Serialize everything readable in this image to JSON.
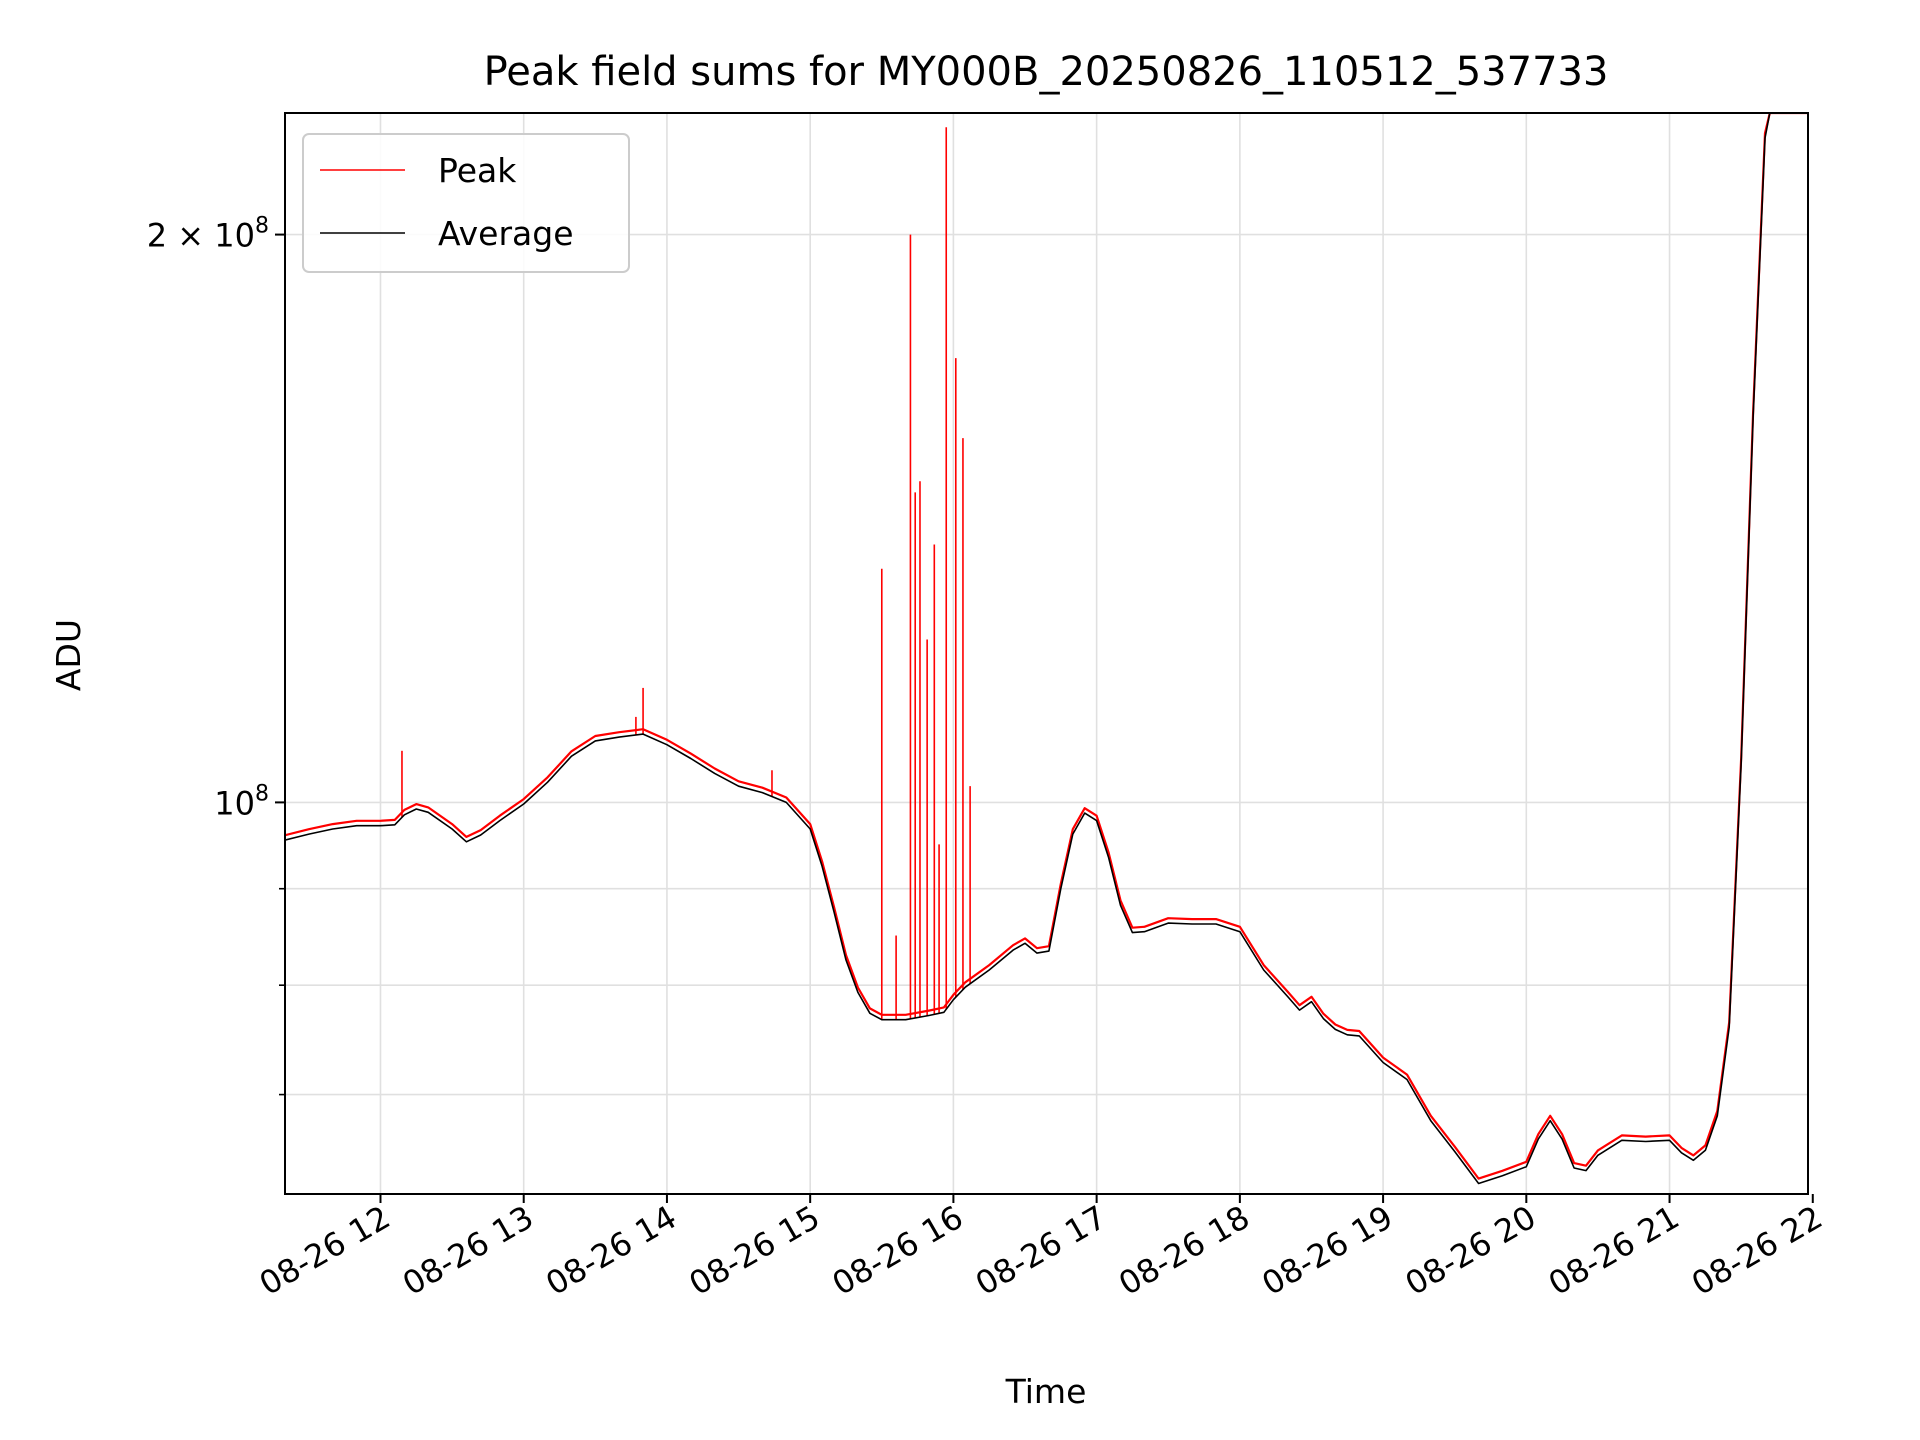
{
  "chart_data": {
    "type": "line",
    "title": "Peak field sums for MY000B_20250826_110512_537733",
    "xlabel": "Time",
    "ylabel": "ADU",
    "yscale": "log",
    "ylim": [
      62000000,
      232000000
    ],
    "xlim": [
      "2025-08-26 11:20",
      "2025-08-26 21:58"
    ],
    "grid": true,
    "legend_position": "top-left",
    "x_ticks": [
      {
        "t": "2025-08-26 12:00",
        "label": "08-26 12"
      },
      {
        "t": "2025-08-26 13:00",
        "label": "08-26 13"
      },
      {
        "t": "2025-08-26 14:00",
        "label": "08-26 14"
      },
      {
        "t": "2025-08-26 15:00",
        "label": "08-26 15"
      },
      {
        "t": "2025-08-26 16:00",
        "label": "08-26 16"
      },
      {
        "t": "2025-08-26 17:00",
        "label": "08-26 17"
      },
      {
        "t": "2025-08-26 18:00",
        "label": "08-26 18"
      },
      {
        "t": "2025-08-26 19:00",
        "label": "08-26 19"
      },
      {
        "t": "2025-08-26 20:00",
        "label": "08-26 20"
      },
      {
        "t": "2025-08-26 21:00",
        "label": "08-26 21"
      },
      {
        "t": "2025-08-26 22:00",
        "label": "08-26 22"
      }
    ],
    "y_ticks_major": [
      {
        "v": 100000000,
        "mantissa": "10",
        "exp": "8"
      },
      {
        "v": 200000000,
        "mantissa": "2 × 10",
        "exp": "8"
      }
    ],
    "y_ticks_minor": [
      70000000,
      80000000,
      90000000
    ],
    "series": [
      {
        "name": "Average",
        "color": "#000000",
        "points": [
          [
            "2025-08-26 11:20",
            95500000
          ],
          [
            "2025-08-26 11:30",
            96200000
          ],
          [
            "2025-08-26 11:40",
            96800000
          ],
          [
            "2025-08-26 11:50",
            97200000
          ],
          [
            "2025-08-26 12:00",
            97200000
          ],
          [
            "2025-08-26 12:06",
            97300000
          ],
          [
            "2025-08-26 12:10",
            98500000
          ],
          [
            "2025-08-26 12:15",
            99200000
          ],
          [
            "2025-08-26 12:20",
            98800000
          ],
          [
            "2025-08-26 12:30",
            96800000
          ],
          [
            "2025-08-26 12:36",
            95300000
          ],
          [
            "2025-08-26 12:42",
            96100000
          ],
          [
            "2025-08-26 12:50",
            97800000
          ],
          [
            "2025-08-26 13:00",
            99800000
          ],
          [
            "2025-08-26 13:10",
            102500000
          ],
          [
            "2025-08-26 13:20",
            105800000
          ],
          [
            "2025-08-26 13:30",
            107800000
          ],
          [
            "2025-08-26 13:40",
            108300000
          ],
          [
            "2025-08-26 13:50",
            108700000
          ],
          [
            "2025-08-26 14:00",
            107300000
          ],
          [
            "2025-08-26 14:10",
            105500000
          ],
          [
            "2025-08-26 14:20",
            103600000
          ],
          [
            "2025-08-26 14:30",
            102000000
          ],
          [
            "2025-08-26 14:40",
            101200000
          ],
          [
            "2025-08-26 14:50",
            100000000
          ],
          [
            "2025-08-26 15:00",
            96800000
          ],
          [
            "2025-08-26 15:05",
            92500000
          ],
          [
            "2025-08-26 15:10",
            87500000
          ],
          [
            "2025-08-26 15:15",
            82500000
          ],
          [
            "2025-08-26 15:20",
            79300000
          ],
          [
            "2025-08-26 15:25",
            77300000
          ],
          [
            "2025-08-26 15:30",
            76700000
          ],
          [
            "2025-08-26 15:40",
            76700000
          ],
          [
            "2025-08-26 15:50",
            77100000
          ],
          [
            "2025-08-26 15:56",
            77400000
          ],
          [
            "2025-08-26 16:00",
            78600000
          ],
          [
            "2025-08-26 16:05",
            79800000
          ],
          [
            "2025-08-26 16:15",
            81500000
          ],
          [
            "2025-08-26 16:25",
            83500000
          ],
          [
            "2025-08-26 16:30",
            84200000
          ],
          [
            "2025-08-26 16:35",
            83200000
          ],
          [
            "2025-08-26 16:40",
            83400000
          ],
          [
            "2025-08-26 16:45",
            90000000
          ],
          [
            "2025-08-26 16:50",
            96200000
          ],
          [
            "2025-08-26 16:55",
            98700000
          ],
          [
            "2025-08-26 17:00",
            97800000
          ],
          [
            "2025-08-26 17:05",
            93500000
          ],
          [
            "2025-08-26 17:10",
            88200000
          ],
          [
            "2025-08-26 17:15",
            85300000
          ],
          [
            "2025-08-26 17:20",
            85400000
          ],
          [
            "2025-08-26 17:30",
            86300000
          ],
          [
            "2025-08-26 17:40",
            86200000
          ],
          [
            "2025-08-26 17:50",
            86200000
          ],
          [
            "2025-08-26 18:00",
            85400000
          ],
          [
            "2025-08-26 18:10",
            81500000
          ],
          [
            "2025-08-26 18:20",
            78900000
          ],
          [
            "2025-08-26 18:25",
            77600000
          ],
          [
            "2025-08-26 18:30",
            78400000
          ],
          [
            "2025-08-26 18:35",
            76800000
          ],
          [
            "2025-08-26 18:40",
            75800000
          ],
          [
            "2025-08-26 18:45",
            75300000
          ],
          [
            "2025-08-26 18:50",
            75200000
          ],
          [
            "2025-08-26 19:00",
            72800000
          ],
          [
            "2025-08-26 19:10",
            71300000
          ],
          [
            "2025-08-26 19:20",
            67800000
          ],
          [
            "2025-08-26 19:30",
            65300000
          ],
          [
            "2025-08-26 19:40",
            62800000
          ],
          [
            "2025-08-26 19:50",
            63400000
          ],
          [
            "2025-08-26 20:00",
            64100000
          ],
          [
            "2025-08-26 20:05",
            66300000
          ],
          [
            "2025-08-26 20:10",
            67800000
          ],
          [
            "2025-08-26 20:15",
            66300000
          ],
          [
            "2025-08-26 20:20",
            64000000
          ],
          [
            "2025-08-26 20:25",
            63800000
          ],
          [
            "2025-08-26 20:30",
            65000000
          ],
          [
            "2025-08-26 20:40",
            66200000
          ],
          [
            "2025-08-26 20:50",
            66100000
          ],
          [
            "2025-08-26 21:00",
            66200000
          ],
          [
            "2025-08-26 21:05",
            65200000
          ],
          [
            "2025-08-26 21:10",
            64600000
          ],
          [
            "2025-08-26 21:15",
            65400000
          ],
          [
            "2025-08-26 21:20",
            68200000
          ],
          [
            "2025-08-26 21:25",
            76000000
          ],
          [
            "2025-08-26 21:30",
            105000000
          ],
          [
            "2025-08-26 21:35",
            160000000
          ],
          [
            "2025-08-26 21:40",
            225000000
          ],
          [
            "2025-08-26 21:42",
            232000000
          ],
          [
            "2025-08-26 21:58",
            232000000
          ]
        ]
      },
      {
        "name": "Peak",
        "color": "#ff0000",
        "spikes": [
          [
            "2025-08-26 12:09",
            106500000
          ],
          [
            "2025-08-26 13:47",
            111000000
          ],
          [
            "2025-08-26 13:50",
            115000000
          ],
          [
            "2025-08-26 14:44",
            104000000
          ],
          [
            "2025-08-26 15:30",
            133000000
          ],
          [
            "2025-08-26 15:36",
            85000000
          ],
          [
            "2025-08-26 15:42",
            200000000
          ],
          [
            "2025-08-26 15:44",
            146000000
          ],
          [
            "2025-08-26 15:46",
            148000000
          ],
          [
            "2025-08-26 15:49",
            122000000
          ],
          [
            "2025-08-26 15:52",
            137000000
          ],
          [
            "2025-08-26 15:54",
            95000000
          ],
          [
            "2025-08-26 15:57",
            228000000
          ],
          [
            "2025-08-26 16:01",
            172000000
          ],
          [
            "2025-08-26 16:04",
            156000000
          ],
          [
            "2025-08-26 16:07",
            102000000
          ]
        ]
      }
    ]
  }
}
